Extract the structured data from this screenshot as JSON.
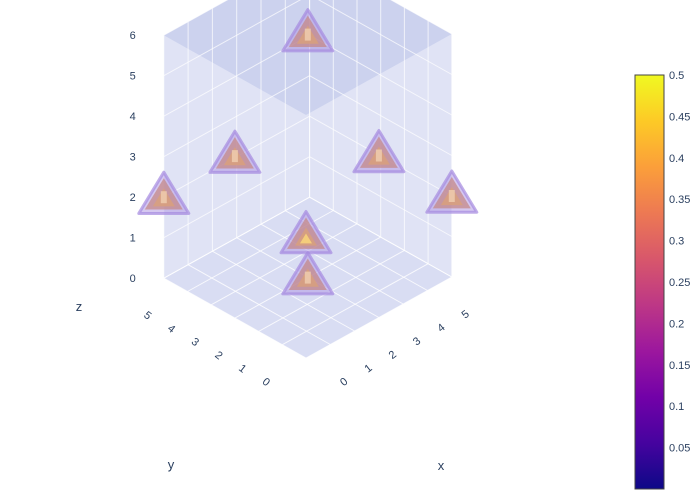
{
  "chart_data": {
    "type": "volume",
    "title": "",
    "axes": {
      "x": {
        "label": "x",
        "ticks": [
          "0",
          "1",
          "2",
          "3",
          "4",
          "5"
        ],
        "range": [
          0,
          6
        ]
      },
      "y": {
        "label": "y",
        "ticks": [
          "0",
          "1",
          "2",
          "3",
          "4",
          "5"
        ],
        "range": [
          0,
          6
        ]
      },
      "z": {
        "label": "z",
        "ticks": [
          "0",
          "1",
          "2",
          "3",
          "4",
          "5",
          "6"
        ],
        "range": [
          0,
          6
        ]
      }
    },
    "colorbar": {
      "ticks": [
        "0.05",
        "0.1",
        "0.15",
        "0.2",
        "0.25",
        "0.3",
        "0.35",
        "0.4",
        "0.45",
        "0.5"
      ],
      "range": [
        0,
        0.5
      ],
      "colorscale": [
        "#0d0887",
        "#46039f",
        "#7201a8",
        "#9c179e",
        "#bd3786",
        "#d8576b",
        "#ed7953",
        "#fb9f3a",
        "#fdca26",
        "#f0f921"
      ]
    },
    "isosurface_bounds": [
      0,
      0.5
    ],
    "blobs": [
      {
        "id": "top",
        "x": 3,
        "y": 3,
        "z": 6,
        "peak": 0.3
      },
      {
        "id": "upper-left",
        "x": 0,
        "y": 3,
        "z": 4,
        "peak": 0.35
      },
      {
        "id": "upper-right",
        "x": 3,
        "y": 0,
        "z": 4,
        "peak": 0.35
      },
      {
        "id": "center",
        "x": 0,
        "y": 0,
        "z": 3,
        "peak": 0.5
      },
      {
        "id": "lower-left",
        "x": 0,
        "y": 6,
        "z": 2,
        "peak": 0.35
      },
      {
        "id": "lower-right",
        "x": 6,
        "y": 0,
        "z": 2,
        "peak": 0.35
      },
      {
        "id": "bottom",
        "x": 3,
        "y": 3,
        "z": 0,
        "peak": 0.3
      }
    ],
    "colors": {
      "panel": "#b7bfe8",
      "grid": "#ffffff",
      "blob_outer": "#b39be3",
      "blob_mid": "#c48a8a",
      "blob_inner": "#d9a07a",
      "blob_core": "#f6d07a"
    }
  }
}
